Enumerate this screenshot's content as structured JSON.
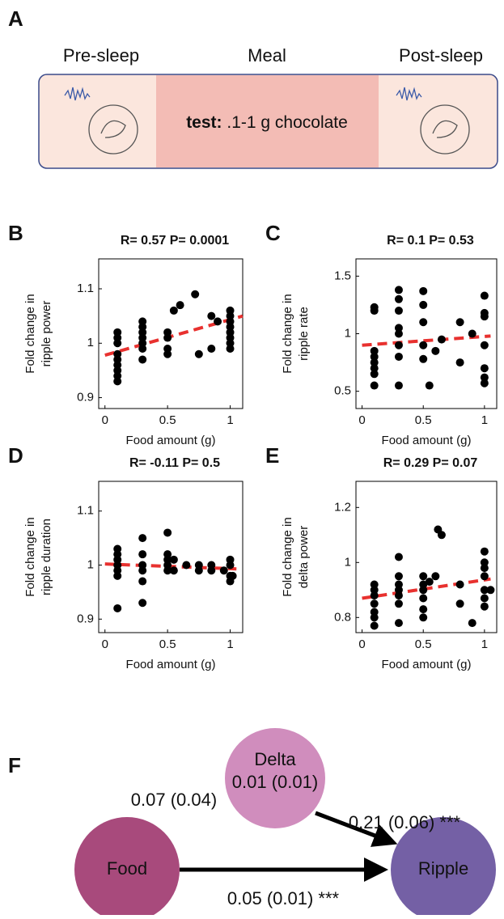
{
  "panel_a": {
    "label": "A",
    "phases": [
      "Pre-sleep",
      "Meal",
      "Post-sleep"
    ],
    "test_label": "test:",
    "test_text": ".1-1 g chocolate"
  },
  "chart_data": [
    {
      "type": "scatter",
      "label": "B",
      "title": "R= 0.57 P= 0.0001",
      "ylabel": [
        "Fold change in",
        "ripple power"
      ],
      "xlabel": "Food amount (g)",
      "color": "#000000",
      "fit_color": "#e8312f",
      "x": [
        0.1,
        0.1,
        0.1,
        0.1,
        0.1,
        0.1,
        0.1,
        0.1,
        0.1,
        0.3,
        0.3,
        0.3,
        0.3,
        0.3,
        0.3,
        0.3,
        0.5,
        0.5,
        0.5,
        0.5,
        0.55,
        0.6,
        0.72,
        0.75,
        0.85,
        0.85,
        0.9,
        1,
        1,
        1,
        1,
        1,
        1,
        1,
        1
      ],
      "values": [
        1.02,
        1.01,
        1.0,
        0.98,
        0.97,
        0.96,
        0.95,
        0.94,
        0.93,
        1.04,
        1.03,
        1.02,
        1.01,
        1.0,
        0.99,
        0.97,
        1.02,
        1.01,
        0.99,
        0.98,
        1.06,
        1.07,
        1.09,
        0.98,
        0.99,
        1.05,
        1.04,
        1.06,
        1.05,
        1.04,
        1.03,
        1.02,
        1.01,
        1.0,
        0.99
      ],
      "fit": {
        "x": [
          0,
          1.1
        ],
        "y": [
          0.978,
          1.05
        ]
      },
      "xlim": [
        -0.05,
        1.1
      ],
      "ylim": [
        0.88,
        1.155
      ],
      "xticks": [
        0,
        0.5,
        1
      ],
      "yticks": [
        0.9,
        1,
        1.1
      ]
    },
    {
      "type": "scatter",
      "label": "C",
      "title": "R= 0.1 P= 0.53",
      "ylabel": [
        "Fold change in",
        "ripple rate"
      ],
      "xlabel": "Food amount (g)",
      "color": "#000000",
      "fit_color": "#e8312f",
      "x": [
        0.1,
        0.1,
        0.1,
        0.1,
        0.1,
        0.1,
        0.1,
        0.1,
        0.3,
        0.3,
        0.3,
        0.3,
        0.3,
        0.3,
        0.3,
        0.3,
        0.5,
        0.5,
        0.5,
        0.5,
        0.5,
        0.55,
        0.6,
        0.65,
        0.8,
        0.8,
        0.9,
        1,
        1,
        1,
        1,
        1,
        1,
        1
      ],
      "values": [
        1.23,
        1.2,
        0.85,
        0.8,
        0.75,
        0.7,
        0.65,
        0.55,
        1.38,
        1.3,
        1.2,
        1.05,
        1.0,
        0.9,
        0.8,
        0.55,
        1.37,
        1.25,
        1.1,
        0.9,
        0.78,
        0.55,
        0.85,
        0.95,
        1.1,
        0.75,
        1.0,
        1.33,
        1.18,
        1.15,
        0.9,
        0.7,
        0.62,
        0.57
      ],
      "fit": {
        "x": [
          0,
          1.05
        ],
        "y": [
          0.9,
          0.98
        ]
      },
      "xlim": [
        -0.05,
        1.1
      ],
      "ylim": [
        0.35,
        1.65
      ],
      "xticks": [
        0,
        0.5,
        1
      ],
      "yticks": [
        0.5,
        1,
        1.5
      ]
    },
    {
      "type": "scatter",
      "label": "D",
      "title": "R= -0.11 P= 0.5",
      "ylabel": [
        "Fold change in",
        "ripple duration"
      ],
      "xlabel": "Food amount (g)",
      "color": "#000000",
      "fit_color": "#e8312f",
      "x": [
        0.1,
        0.1,
        0.1,
        0.1,
        0.1,
        0.1,
        0.1,
        0.3,
        0.3,
        0.3,
        0.3,
        0.3,
        0.3,
        0.5,
        0.5,
        0.5,
        0.5,
        0.5,
        0.55,
        0.55,
        0.65,
        0.75,
        0.75,
        0.85,
        0.85,
        0.95,
        1,
        1,
        1,
        1,
        1.02
      ],
      "values": [
        1.03,
        1.02,
        1.01,
        1.0,
        0.99,
        0.98,
        0.92,
        1.05,
        1.02,
        1.0,
        0.99,
        0.97,
        0.93,
        1.06,
        1.02,
        1.01,
        1.0,
        0.99,
        1.01,
        0.99,
        1.0,
        0.99,
        1.0,
        1.0,
        0.99,
        0.99,
        1.01,
        1.0,
        0.98,
        0.97,
        0.98
      ],
      "fit": {
        "x": [
          0,
          1.05
        ],
        "y": [
          1.002,
          0.993
        ]
      },
      "xlim": [
        -0.05,
        1.1
      ],
      "ylim": [
        0.875,
        1.155
      ],
      "xticks": [
        0,
        0.5,
        1
      ],
      "yticks": [
        0.9,
        1,
        1.1
      ]
    },
    {
      "type": "scatter",
      "label": "E",
      "title": "R= 0.29 P= 0.07",
      "ylabel": [
        "Fold change in",
        "delta power"
      ],
      "xlabel": "Food amount (g)",
      "color": "#000000",
      "fit_color": "#e8312f",
      "x": [
        0.1,
        0.1,
        0.1,
        0.1,
        0.1,
        0.1,
        0.1,
        0.3,
        0.3,
        0.3,
        0.3,
        0.3,
        0.3,
        0.3,
        0.5,
        0.5,
        0.5,
        0.5,
        0.5,
        0.5,
        0.55,
        0.6,
        0.62,
        0.65,
        0.8,
        0.8,
        0.9,
        1,
        1,
        1,
        1,
        1,
        1,
        1,
        1.05
      ],
      "values": [
        0.92,
        0.9,
        0.88,
        0.85,
        0.82,
        0.8,
        0.77,
        1.02,
        0.95,
        0.92,
        0.9,
        0.88,
        0.85,
        0.78,
        0.95,
        0.92,
        0.9,
        0.87,
        0.83,
        0.8,
        0.93,
        0.95,
        1.12,
        1.1,
        0.92,
        0.85,
        0.78,
        1.04,
        1.0,
        0.98,
        0.95,
        0.9,
        0.87,
        0.84,
        0.9
      ],
      "fit": {
        "x": [
          0,
          1.05
        ],
        "y": [
          0.87,
          0.94
        ]
      },
      "xlim": [
        -0.05,
        1.1
      ],
      "ylim": [
        0.745,
        1.295
      ],
      "xticks": [
        0,
        0.5,
        1
      ],
      "yticks": [
        0.8,
        1,
        1.2
      ]
    }
  ],
  "panel_f": {
    "label": "F",
    "nodes": {
      "delta": "Delta",
      "delta_value": "0.01 (0.01)",
      "food": "Food",
      "ripple": "Ripple"
    },
    "edges": {
      "food_delta": "0.07 (0.04)",
      "delta_ripple": "0.21 (0.06) ***",
      "food_ripple": "0.05 (0.01) ***"
    }
  }
}
